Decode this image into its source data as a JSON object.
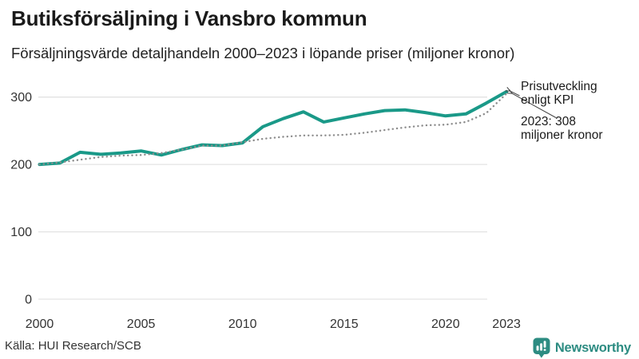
{
  "header": {
    "title": "Butiksförsäljning i Vansbro kommun",
    "subtitle": "Försäljningsvärde detaljhandeln 2000–2023 i löpande priser (miljoner kronor)"
  },
  "chart_data": {
    "type": "line",
    "x": [
      2000,
      2001,
      2002,
      2003,
      2004,
      2005,
      2006,
      2007,
      2008,
      2009,
      2010,
      2011,
      2012,
      2013,
      2014,
      2015,
      2016,
      2017,
      2018,
      2019,
      2020,
      2021,
      2022,
      2023
    ],
    "series": [
      {
        "name": "Försäljningsvärde i löpande priser",
        "style": "solid",
        "color": "#1a9988",
        "values": [
          200,
          202,
          218,
          215,
          217,
          220,
          214,
          222,
          229,
          228,
          232,
          256,
          268,
          278,
          263,
          269,
          275,
          280,
          281,
          277,
          272,
          275,
          291,
          308
        ]
      },
      {
        "name": "Prisutveckling enligt KPI",
        "style": "dotted",
        "color": "#8c8c8c",
        "values": [
          200,
          203,
          207,
          211,
          213,
          214,
          217,
          222,
          228,
          228,
          233,
          238,
          241,
          243,
          243,
          244,
          247,
          251,
          255,
          258,
          259,
          263,
          276,
          305
        ]
      }
    ],
    "ylim": [
      0,
      320
    ],
    "yticks": [
      0,
      100,
      200,
      300
    ],
    "xticks": [
      2000,
      2005,
      2010,
      2015,
      2020,
      2023
    ],
    "grid": "horizontal",
    "legend": "none",
    "annotations": [
      {
        "text": "Prisutveckling enligt KPI",
        "target": "kpi-line-end-2023"
      },
      {
        "text": "2023: 308 miljoner kronor",
        "target": "main-line-end-2023"
      }
    ]
  },
  "footer": {
    "source": "Källa: HUI Research/SCB",
    "brand": "Newsworthy",
    "brand_icon": "bar-chart-speech-bubble-icon",
    "brand_color": "#2d8c82"
  },
  "colors": {
    "line_main": "#1a9988",
    "line_kpi_dotted": "#8c8c8c",
    "gridline": "#e3e3e3",
    "axis_text": "#333333",
    "arrow": "#444444",
    "background": "#ffffff"
  }
}
